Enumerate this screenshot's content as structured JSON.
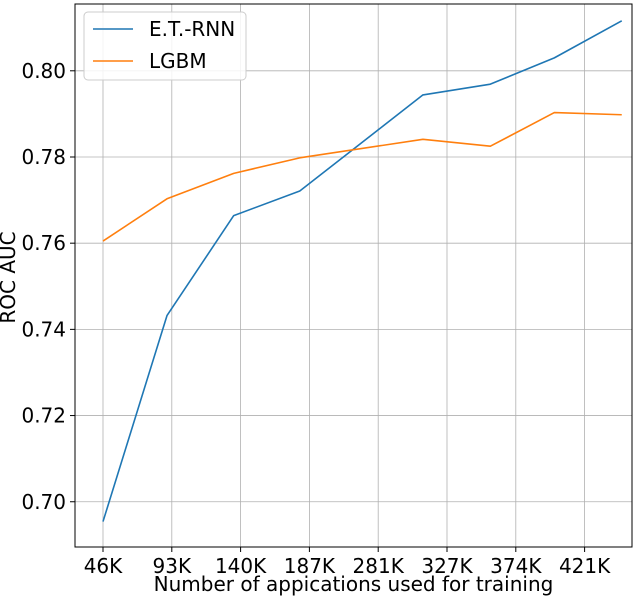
{
  "chart_data": {
    "type": "line",
    "title": "",
    "xlabel": "Number of appications used for training",
    "ylabel": "ROC AUC",
    "x_tick_labels": [
      "46K",
      "93K",
      "140K",
      "187K",
      "281K",
      "327K",
      "374K",
      "421K"
    ],
    "y_tick_labels": [
      "0.70",
      "0.72",
      "0.74",
      "0.76",
      "0.78",
      "0.80"
    ],
    "y_ticks": [
      0.7,
      0.72,
      0.74,
      0.76,
      0.78,
      0.8
    ],
    "ylim": [
      0.6895,
      0.8155
    ],
    "x_index_range": [
      -0.38,
      8.24
    ],
    "grid": true,
    "legend_position": "top-left",
    "series": [
      {
        "name": "E.T.-RNN",
        "color": "#1f77b4",
        "x_index": [
          0,
          0.93,
          1.9,
          2.86,
          4.65,
          5.63,
          6.56,
          7.54
        ],
        "values": [
          0.6954,
          0.7432,
          0.7664,
          0.7721,
          0.7944,
          0.7969,
          0.803,
          0.8116
        ]
      },
      {
        "name": "LGBM",
        "color": "#ff7f0e",
        "x_index": [
          0,
          0.93,
          1.9,
          2.86,
          4.65,
          5.63,
          6.56,
          7.54
        ],
        "values": [
          0.7605,
          0.7703,
          0.7762,
          0.7798,
          0.7841,
          0.7825,
          0.7903,
          0.7898
        ]
      }
    ]
  }
}
